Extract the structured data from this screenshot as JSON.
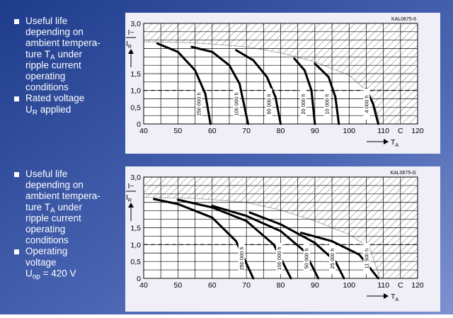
{
  "notes": [
    {
      "items": [
        [
          "Useful life",
          "depending on",
          "ambient tempera-",
          [
            "ture T",
            "A",
            " under"
          ],
          "ripple current",
          "operating",
          "conditions"
        ],
        [
          "Rated voltage",
          [
            "U",
            "R",
            " applied"
          ]
        ]
      ]
    },
    {
      "items": [
        [
          "Useful life",
          "depending on",
          "ambient tempera-",
          [
            "ture T",
            "A",
            " under"
          ],
          "ripple current",
          "operating",
          "conditions"
        ],
        [
          "Operating",
          "voltage",
          [
            "U",
            "op",
            " = 420 V"
          ]
        ]
      ]
    }
  ],
  "chart_data": [
    {
      "type": "line",
      "code": "KAL0675-6",
      "ylabel": {
        "num": "I~",
        "den": [
          "I",
          "R"
        ]
      },
      "xlabel": [
        "T",
        "A"
      ],
      "xlim": [
        40,
        120
      ],
      "xticks": [
        40,
        50,
        60,
        70,
        80,
        90,
        100,
        110,
        {
          "value": 115,
          "label": "C"
        },
        120
      ],
      "xminorticks": [
        45,
        55,
        65,
        75,
        85,
        95,
        105
      ],
      "ylim": [
        0,
        3
      ],
      "yticks": [
        0,
        {
          "value": 0.5,
          "label": "0,5"
        },
        {
          "value": 1,
          "label": "1,0"
        },
        {
          "value": 1.5,
          "label": "1,5"
        },
        {
          "value": 3,
          "label": "3,0"
        }
      ],
      "yminorticks": [
        0.25,
        0.75,
        1.25,
        1.75,
        2,
        2.25,
        2.5,
        2.75
      ],
      "grid": true,
      "ref_line": 1,
      "boundary": {
        "x": [
          40,
          55,
          70,
          80,
          90,
          100,
          105,
          108,
          109
        ],
        "values": [
          2.45,
          2.42,
          2.3,
          2.12,
          1.85,
          1.45,
          1.0,
          0.4,
          0
        ]
      },
      "series": [
        {
          "name": "250 000 h",
          "color": "#000000",
          "x": [
            44,
            50,
            55,
            58,
            59.5
          ],
          "values": [
            2.4,
            2.15,
            1.6,
            0.9,
            0
          ]
        },
        {
          "name": "100 000 h",
          "color": "#000000",
          "x": [
            54,
            60,
            65,
            68,
            70.5
          ],
          "values": [
            2.3,
            2.15,
            1.75,
            1.2,
            0
          ]
        },
        {
          "name": "50 000 h",
          "color": "#000000",
          "x": [
            67,
            72,
            76,
            78.5,
            80
          ],
          "values": [
            2.2,
            1.9,
            1.4,
            0.8,
            0
          ]
        },
        {
          "name": "20 000 h",
          "color": "#000000",
          "x": [
            84,
            87,
            89,
            90
          ],
          "values": [
            1.95,
            1.6,
            1.0,
            0
          ]
        },
        {
          "name": "10 000 h",
          "color": "#000000",
          "x": [
            90,
            94,
            96,
            97
          ],
          "values": [
            1.8,
            1.4,
            0.8,
            0
          ]
        },
        {
          "name": "4 000 h",
          "color": "#000000",
          "x": [
            105,
            107,
            108.5
          ],
          "values": [
            1.05,
            0.6,
            0
          ]
        }
      ]
    },
    {
      "type": "line",
      "code": "KAL0675-G",
      "ylabel": {
        "num": "I~",
        "den": [
          "I",
          "R"
        ]
      },
      "xlabel": [
        "T",
        "A"
      ],
      "xlim": [
        40,
        120
      ],
      "xticks": [
        40,
        50,
        60,
        70,
        80,
        90,
        100,
        110,
        {
          "value": 115,
          "label": "C"
        },
        120
      ],
      "xminorticks": [
        45,
        55,
        65,
        75,
        85,
        95,
        105
      ],
      "ylim": [
        0,
        3
      ],
      "yticks": [
        0,
        {
          "value": 0.5,
          "label": "0,5"
        },
        {
          "value": 1,
          "label": "1,0"
        },
        {
          "value": 1.5,
          "label": "1,5"
        },
        {
          "value": 3,
          "label": "3,0"
        }
      ],
      "yminorticks": [
        0.25,
        0.75,
        1.25,
        1.75,
        2,
        2.25,
        2.5,
        2.75
      ],
      "grid": true,
      "ref_line": 1,
      "boundary": {
        "x": [
          40,
          55,
          70,
          80,
          90,
          100,
          106,
          109
        ],
        "values": [
          2.4,
          2.37,
          2.25,
          2.02,
          1.7,
          1.3,
          0.9,
          0
        ]
      },
      "series": [
        {
          "name": "250 000 h",
          "color": "#000000",
          "x": [
            43,
            50,
            60,
            67,
            72
          ],
          "values": [
            2.35,
            2.2,
            1.8,
            1.1,
            0
          ]
        },
        {
          "name": "100 000 h",
          "color": "#000000",
          "x": [
            50,
            60,
            70,
            78,
            83
          ],
          "values": [
            2.33,
            2.1,
            1.7,
            1.0,
            0
          ]
        },
        {
          "name": "50 000 h",
          "color": "#000000",
          "x": [
            60,
            70,
            80,
            87,
            91
          ],
          "values": [
            2.15,
            1.85,
            1.4,
            0.8,
            0
          ]
        },
        {
          "name": "25 000 h",
          "color": "#000000",
          "x": [
            71,
            80,
            90,
            96,
            98.5
          ],
          "values": [
            1.95,
            1.6,
            1.05,
            0.5,
            0
          ]
        },
        {
          "name": "11 500 h",
          "color": "#000000",
          "x": [
            86,
            95,
            103,
            108.5
          ],
          "values": [
            1.35,
            1.1,
            0.7,
            0
          ]
        }
      ]
    }
  ]
}
